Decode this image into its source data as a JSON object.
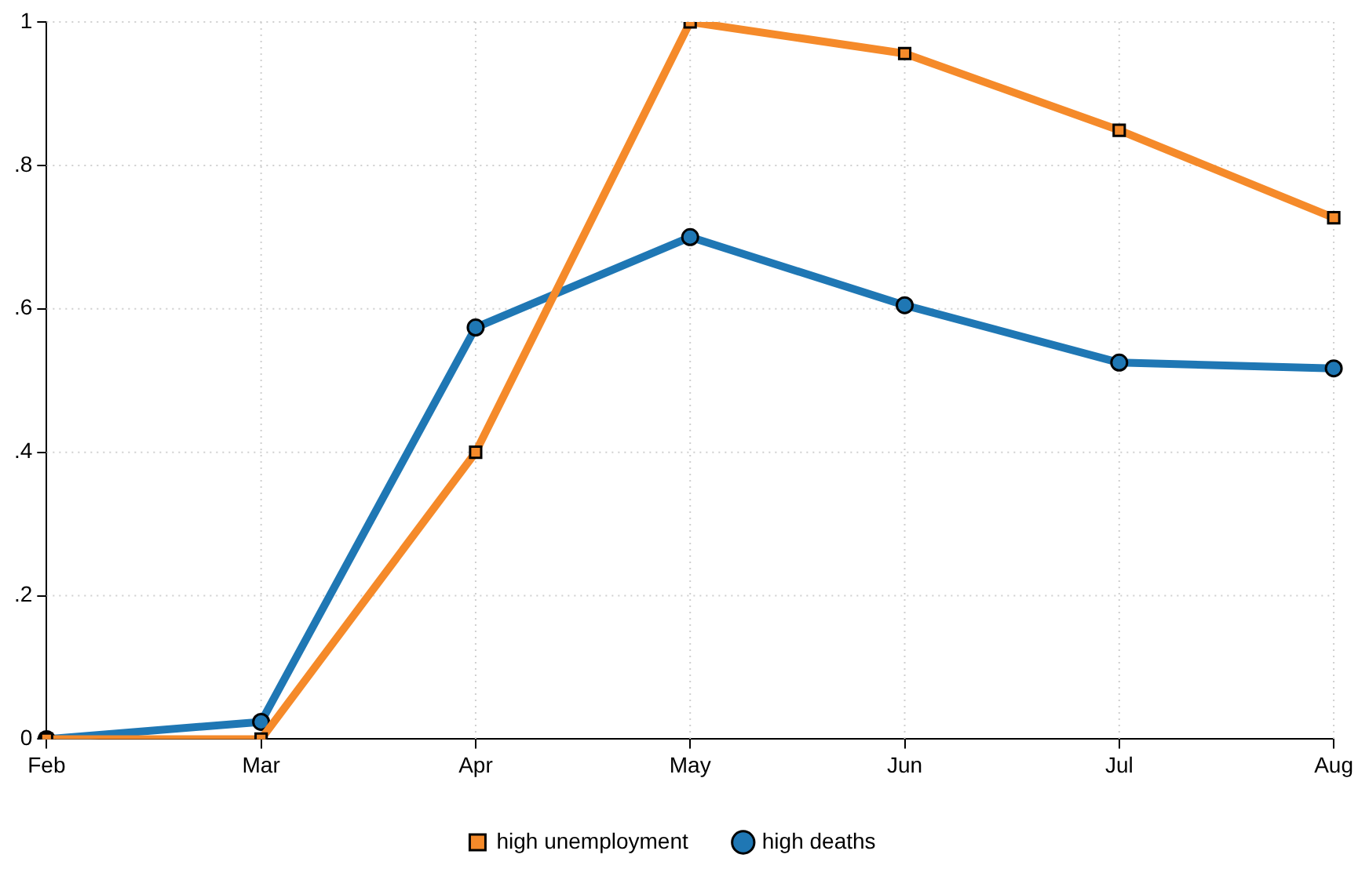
{
  "chart_data": {
    "type": "line",
    "categories": [
      "Feb",
      "Mar",
      "Apr",
      "May",
      "Jun",
      "Jul",
      "Aug"
    ],
    "series": [
      {
        "name": "high unemployment",
        "color": "#f58a2a",
        "marker": "square",
        "values": [
          0,
          0,
          0.4,
          1.0,
          0.956,
          0.849,
          0.727
        ]
      },
      {
        "name": "high deaths",
        "color": "#1f77b4",
        "marker": "circle",
        "values": [
          0,
          0.024,
          0.574,
          0.7,
          0.605,
          0.525,
          0.517
        ]
      }
    ],
    "ylim": [
      0,
      1
    ],
    "yticks": [
      {
        "value": 0,
        "label": "0"
      },
      {
        "value": 0.2,
        "label": ".2"
      },
      {
        "value": 0.4,
        "label": ".4"
      },
      {
        "value": 0.6,
        "label": ".6"
      },
      {
        "value": 0.8,
        "label": ".8"
      },
      {
        "value": 1,
        "label": "1"
      }
    ],
    "grid": true,
    "legend": "bottom",
    "line_style": "solid"
  }
}
